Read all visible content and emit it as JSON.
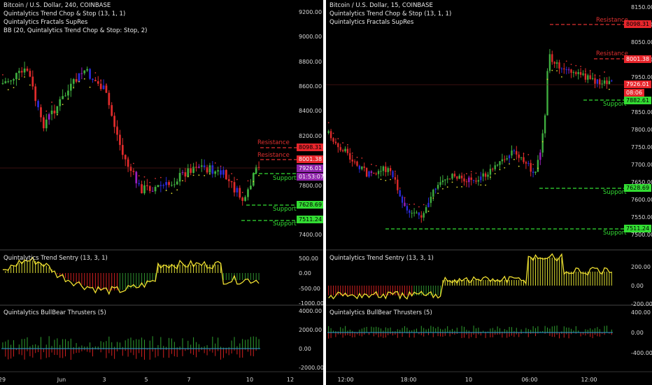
{
  "colors": {
    "up": "#3fae3f",
    "down": "#e02b2b",
    "blue": "#2a2ad8",
    "purple": "#9b1fbf",
    "resist": "#e03030",
    "support": "#33dd33",
    "trail_dn": "#e03030",
    "trail_up": "#d9d92e",
    "bb": "#1f5c4a"
  },
  "left": {
    "title": "Bitcoin / U.S. Dollar, 240, COINBASE",
    "indicators": [
      "Quintalytics Trend Chop & Stop (13, 1, 1)",
      "Quintalytics Fractals SupRes",
      "BB (20, Quintalytics Trend Chop & Stop: Stop, 2)"
    ],
    "price_axis": [
      "9200.00",
      "9000.00",
      "8800.00",
      "8600.00",
      "8400.00",
      "8200.00",
      "7800.00",
      "7400.00"
    ],
    "tags": [
      {
        "text": "8098.31",
        "bg": "#e8262c",
        "fg": "#000"
      },
      {
        "text": "8001.38",
        "bg": "#e8262c",
        "fg": "#fff"
      },
      {
        "text": "7926.01",
        "bg": "#8e24aa",
        "fg": "#fff"
      },
      {
        "text": "01:53:07",
        "bg": "#8e24aa",
        "fg": "#fff"
      },
      {
        "text": "7628.69",
        "bg": "#33dd33",
        "fg": "#000"
      },
      {
        "text": "7511.24",
        "bg": "#33dd33",
        "fg": "#000"
      }
    ],
    "sr_labels": [
      "Resistance",
      "Resistance",
      "Support",
      "Support",
      "Support"
    ],
    "sentry_title": "Quintalytics Trend Sentry (13, 3, 1)",
    "sentry_axis": [
      "500.00",
      "0.00",
      "-500.00",
      "-1000.00"
    ],
    "thrusters_title": "Quintalytics BullBear Thrusters (5)",
    "thrusters_axis": [
      "4000.00",
      "2000.00",
      "0.00",
      "-2000.00"
    ],
    "time_axis": [
      "29",
      "Jun",
      "3",
      "5",
      "7",
      "10",
      "12"
    ]
  },
  "right": {
    "title": "Bitcoin / U.S. Dollar, 15, COINBASE",
    "indicators": [
      "Quintalytics Trend Chop & Stop (13, 1, 1)",
      "Quintalytics Fractals SupRes"
    ],
    "price_axis": [
      "8150.00",
      "8100.00",
      "8050.00",
      "8000.00",
      "7950.00",
      "7850.00",
      "7800.00",
      "7750.00",
      "7700.00",
      "7650.00",
      "7600.00",
      "7550.00",
      "7500.00"
    ],
    "tags": [
      {
        "text": "8098.31",
        "bg": "#e8262c",
        "fg": "#000"
      },
      {
        "text": "8001.38",
        "bg": "#e8262c",
        "fg": "#fff"
      },
      {
        "text": "7926.01",
        "bg": "#e8262c",
        "fg": "#fff"
      },
      {
        "text": "08:06",
        "bg": "#e8262c",
        "fg": "#fff"
      },
      {
        "text": "7882.61",
        "bg": "#33dd33",
        "fg": "#000"
      },
      {
        "text": "7628.69",
        "bg": "#33dd33",
        "fg": "#000"
      },
      {
        "text": "7511.24",
        "bg": "#33dd33",
        "fg": "#000"
      }
    ],
    "sr_labels": [
      "Resistance",
      "Resistance",
      "Support",
      "Support",
      "Support"
    ],
    "sentry_title": "Quintalytics Trend Sentry (13, 3, 1)",
    "sentry_axis": [
      "200.00",
      "0.00",
      "-200.00"
    ],
    "thrusters_title": "Quintalytics BullBear Thrusters (5)",
    "thrusters_axis": [
      "400.00",
      "0.00",
      "-400.00"
    ],
    "time_axis": [
      "12:00",
      "18:00",
      "10",
      "06:00",
      "12:00"
    ]
  }
}
